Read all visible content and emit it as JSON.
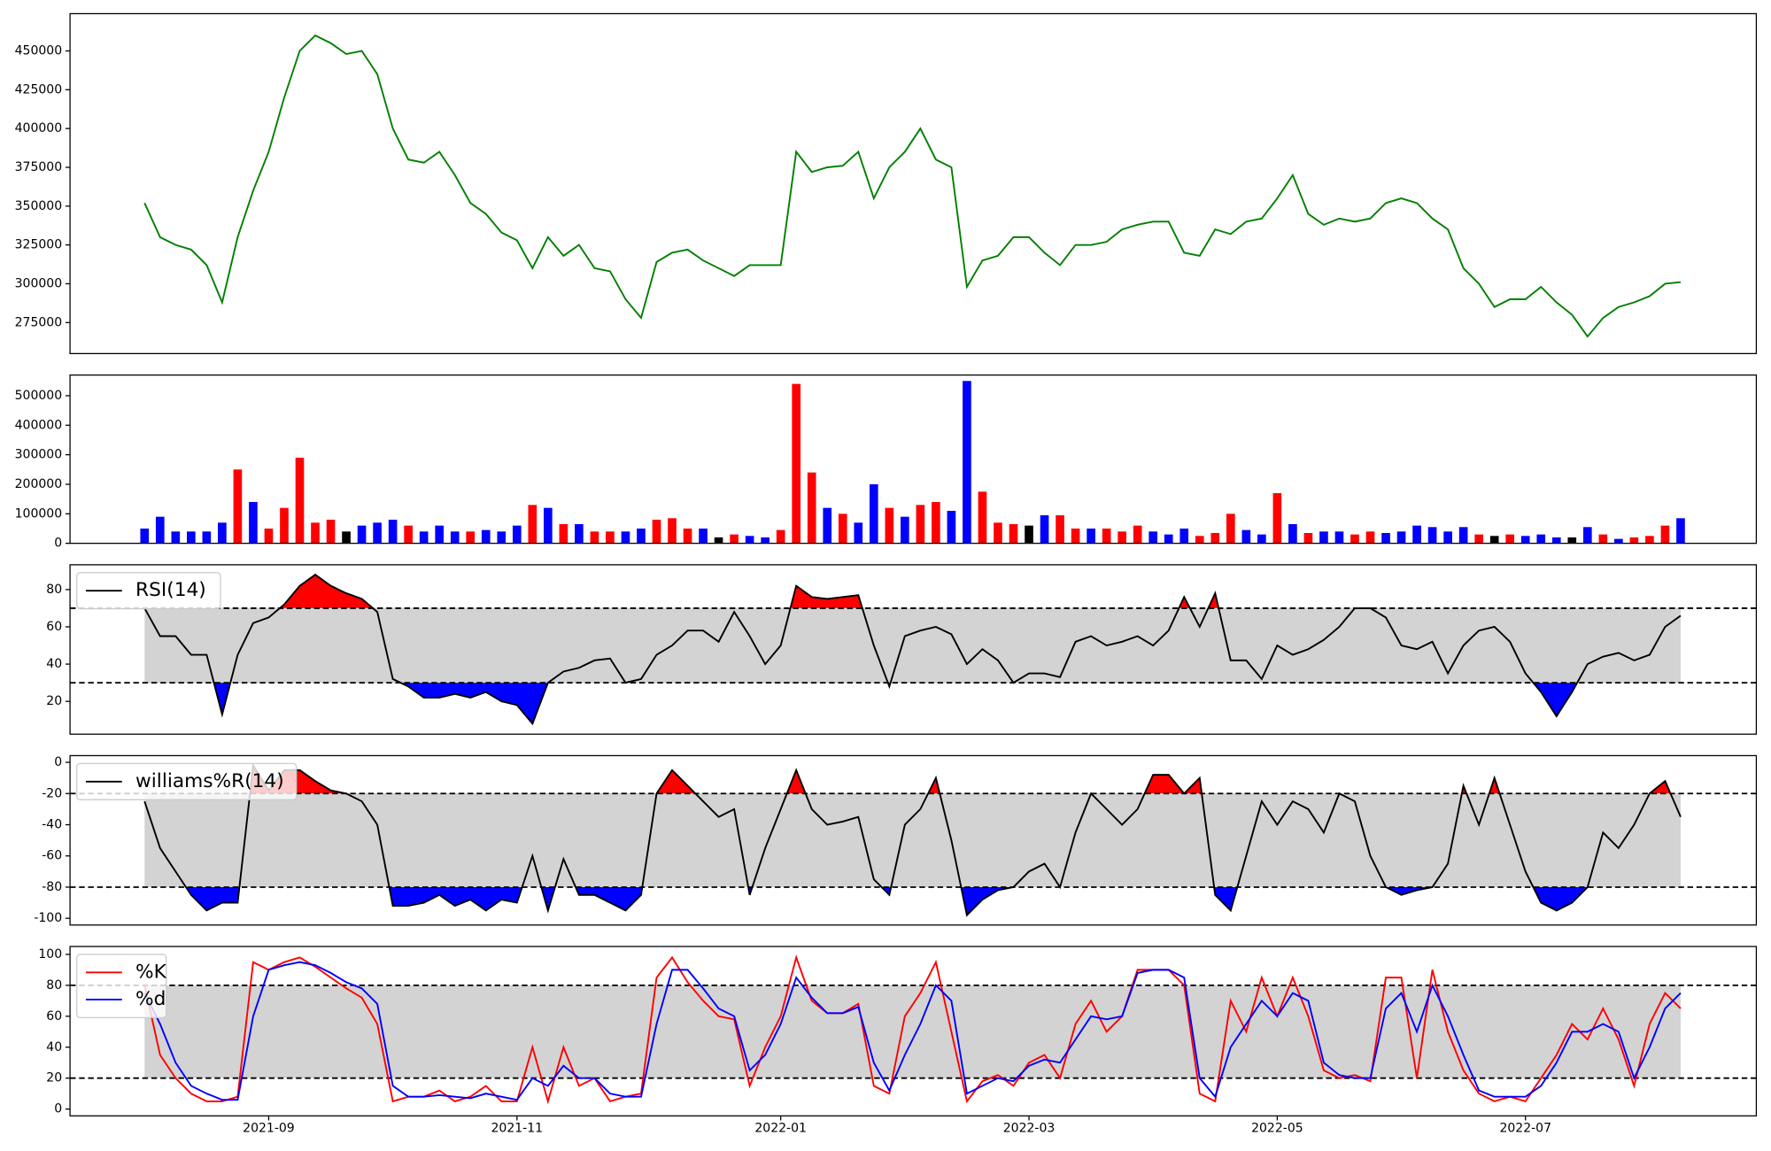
{
  "chart_data": [
    {
      "type": "line",
      "color": "green",
      "values": [
        352000,
        330000,
        325000,
        322000,
        312000,
        288000,
        330000,
        360000,
        385000,
        420000,
        450000,
        460000,
        455000,
        448000,
        450000,
        435000,
        400000,
        380000,
        378000,
        385000,
        370000,
        352000,
        345000,
        333000,
        328000,
        310000,
        330000,
        318000,
        325000,
        310000,
        308000,
        290000,
        278000,
        314000,
        320000,
        322000,
        315000,
        310000,
        305000,
        312000,
        312000,
        312000,
        385000,
        372000,
        375000,
        376000,
        385000,
        355000,
        375000,
        385000,
        400000,
        380000,
        375000,
        298000,
        315000,
        318000,
        330000,
        330000,
        320000,
        312000,
        325000,
        325000,
        327000,
        335000,
        338000,
        340000,
        340000,
        320000,
        318000,
        335000,
        332000,
        340000,
        342000,
        355000,
        370000,
        345000,
        338000,
        342000,
        340000,
        342000,
        352000,
        355000,
        352000,
        342000,
        335000,
        310000,
        300000,
        285000,
        290000,
        290000,
        298000,
        288000,
        280000,
        266000,
        278000,
        285000,
        288000,
        292000,
        300000,
        301000
      ],
      "ylim": [
        255000,
        474000
      ],
      "yticks": [
        275000,
        300000,
        325000,
        350000,
        375000,
        400000,
        425000,
        450000
      ]
    },
    {
      "type": "bar",
      "values": [
        50000,
        90000,
        40000,
        40000,
        40000,
        70000,
        250000,
        140000,
        50000,
        120000,
        290000,
        70000,
        80000,
        40000,
        60000,
        70000,
        80000,
        60000,
        40000,
        60000,
        40000,
        40000,
        45000,
        40000,
        60000,
        130000,
        120000,
        65000,
        65000,
        40000,
        40000,
        40000,
        50000,
        80000,
        85000,
        50000,
        50000,
        20000,
        30000,
        25000,
        20000,
        45000,
        540000,
        240000,
        120000,
        100000,
        70000,
        200000,
        120000,
        90000,
        130000,
        140000,
        110000,
        550000,
        175000,
        70000,
        65000,
        60000,
        95000,
        95000,
        50000,
        50000,
        50000,
        40000,
        60000,
        40000,
        30000,
        50000,
        25000,
        35000,
        100000,
        45000,
        30000,
        170000,
        65000,
        35000,
        40000,
        40000,
        30000,
        40000,
        35000,
        40000,
        60000,
        55000,
        40000,
        55000,
        30000,
        25000,
        30000,
        25000,
        30000,
        20000,
        20000,
        55000,
        30000,
        15000,
        20000,
        25000,
        60000,
        85000
      ],
      "colors": [
        "blue",
        "blue",
        "blue",
        "blue",
        "blue",
        "blue",
        "red",
        "blue",
        "red",
        "red",
        "red",
        "red",
        "red",
        "black",
        "blue",
        "blue",
        "blue",
        "red",
        "blue",
        "blue",
        "blue",
        "red",
        "blue",
        "blue",
        "blue",
        "red",
        "blue",
        "red",
        "blue",
        "red",
        "red",
        "blue",
        "blue",
        "red",
        "red",
        "red",
        "blue",
        "black",
        "red",
        "blue",
        "blue",
        "red",
        "red",
        "red",
        "blue",
        "red",
        "blue",
        "blue",
        "red",
        "blue",
        "red",
        "red",
        "blue",
        "blue",
        "red",
        "red",
        "red",
        "black",
        "blue",
        "red",
        "red",
        "blue",
        "red",
        "red",
        "red",
        "blue",
        "blue",
        "blue",
        "red",
        "red",
        "red",
        "blue",
        "blue",
        "red",
        "blue",
        "red",
        "blue",
        "blue",
        "red",
        "red",
        "blue",
        "blue",
        "blue",
        "blue",
        "blue",
        "blue",
        "red",
        "black",
        "red",
        "blue",
        "blue",
        "blue",
        "black",
        "blue",
        "red",
        "blue",
        "red",
        "red",
        "red",
        "blue"
      ],
      "ylim": [
        0,
        570000
      ],
      "yticks": [
        0,
        100000,
        200000,
        300000,
        400000,
        500000
      ]
    },
    {
      "type": "line",
      "legend": "upper left",
      "hlines": [
        30,
        70
      ],
      "band_color": "lightgray",
      "above_color": "red",
      "below_color": "blue",
      "series": [
        {
          "name": "RSI(14)",
          "color": "black",
          "values": [
            70,
            55,
            55,
            45,
            45,
            13,
            45,
            62,
            65,
            72,
            82,
            88,
            82,
            78,
            75,
            68,
            32,
            28,
            22,
            22,
            24,
            22,
            25,
            20,
            18,
            8,
            30,
            36,
            38,
            42,
            43,
            30,
            32,
            45,
            50,
            58,
            58,
            52,
            68,
            55,
            40,
            50,
            82,
            76,
            75,
            76,
            77,
            50,
            28,
            55,
            58,
            60,
            56,
            40,
            48,
            42,
            30,
            35,
            35,
            33,
            52,
            55,
            50,
            52,
            55,
            50,
            58,
            76,
            60,
            78,
            42,
            42,
            32,
            50,
            45,
            48,
            53,
            60,
            70,
            70,
            65,
            50,
            48,
            52,
            35,
            50,
            58,
            60,
            52,
            35,
            25,
            12,
            25,
            40,
            44,
            46,
            42,
            45,
            60,
            66
          ]
        }
      ],
      "ylim": [
        2.4,
        93.3
      ],
      "yticks": [
        20,
        40,
        60,
        80
      ]
    },
    {
      "type": "line",
      "legend": "upper left",
      "hlines": [
        -20,
        -80
      ],
      "band_color": "lightgray",
      "above_color": "red",
      "below_color": "blue",
      "series": [
        {
          "name": "williams%R(14)",
          "color": "black",
          "values": [
            -25,
            -55,
            -70,
            -85,
            -95,
            -90,
            -90,
            -2,
            -18,
            -5,
            -5,
            -12,
            -18,
            -20,
            -25,
            -40,
            -92,
            -92,
            -90,
            -85,
            -92,
            -88,
            -95,
            -88,
            -90,
            -60,
            -95,
            -62,
            -85,
            -85,
            -90,
            -95,
            -85,
            -20,
            -5,
            -15,
            -25,
            -35,
            -30,
            -85,
            -55,
            -30,
            -5,
            -30,
            -40,
            -38,
            -35,
            -75,
            -85,
            -40,
            -30,
            -10,
            -50,
            -98,
            -88,
            -82,
            -80,
            -70,
            -65,
            -80,
            -45,
            -20,
            -30,
            -40,
            -30,
            -8,
            -8,
            -20,
            -10,
            -85,
            -95,
            -60,
            -25,
            -40,
            -25,
            -30,
            -45,
            -20,
            -25,
            -60,
            -80,
            -85,
            -82,
            -80,
            -65,
            -15,
            -40,
            -10,
            -40,
            -70,
            -90,
            -95,
            -90,
            -80,
            -45,
            -55,
            -40,
            -20,
            -12,
            -35
          ]
        }
      ],
      "ylim": [
        -104.3,
        4.3
      ],
      "yticks": [
        -100,
        -80,
        -60,
        -40,
        -20,
        0
      ]
    },
    {
      "type": "line",
      "legend": "upper left",
      "hlines": [
        20,
        80
      ],
      "band_color": "lightgray",
      "series": [
        {
          "name": "%K",
          "color": "red",
          "values": [
            80,
            35,
            20,
            10,
            5,
            5,
            8,
            95,
            90,
            95,
            98,
            92,
            85,
            78,
            72,
            55,
            5,
            8,
            8,
            12,
            5,
            8,
            15,
            5,
            5,
            40,
            5,
            40,
            15,
            20,
            5,
            8,
            10,
            85,
            98,
            82,
            70,
            60,
            58,
            15,
            40,
            60,
            98,
            70,
            62,
            62,
            68,
            15,
            10,
            60,
            75,
            95,
            50,
            5,
            18,
            22,
            15,
            30,
            35,
            20,
            55,
            70,
            50,
            60,
            90,
            90,
            90,
            80,
            10,
            5,
            70,
            50,
            85,
            60,
            85,
            60,
            25,
            20,
            22,
            18,
            85,
            85,
            20,
            90,
            50,
            25,
            10,
            5,
            8,
            5,
            20,
            35,
            55,
            45,
            65,
            45,
            15,
            55,
            75,
            65
          ]
        },
        {
          "name": "%d",
          "color": "blue",
          "values": [
            75,
            55,
            30,
            15,
            10,
            6,
            6,
            60,
            90,
            93,
            95,
            93,
            88,
            82,
            78,
            68,
            15,
            8,
            8,
            9,
            8,
            7,
            10,
            8,
            6,
            20,
            15,
            28,
            20,
            20,
            10,
            8,
            8,
            55,
            90,
            90,
            78,
            65,
            60,
            25,
            35,
            55,
            85,
            72,
            62,
            62,
            66,
            30,
            12,
            35,
            55,
            80,
            70,
            10,
            15,
            20,
            18,
            28,
            32,
            30,
            45,
            60,
            58,
            60,
            88,
            90,
            90,
            85,
            20,
            8,
            40,
            55,
            70,
            60,
            75,
            70,
            30,
            22,
            20,
            20,
            65,
            75,
            50,
            80,
            60,
            35,
            12,
            8,
            8,
            8,
            15,
            30,
            50,
            50,
            55,
            50,
            20,
            40,
            65,
            75
          ]
        }
      ],
      "categories": [
        null,
        null,
        null,
        null,
        null,
        null,
        null,
        null,
        "2021-09",
        null,
        null,
        null,
        null,
        null,
        null,
        null,
        null,
        null,
        null,
        null,
        null,
        null,
        null,
        null,
        "2021-11",
        null,
        null,
        null,
        null,
        null,
        null,
        null,
        null,
        null,
        null,
        null,
        null,
        null,
        null,
        null,
        null,
        "2022-01",
        null,
        null,
        null,
        null,
        null,
        null,
        null,
        null,
        null,
        null,
        null,
        null,
        null,
        null,
        null,
        "2022-03",
        null,
        null,
        null,
        null,
        null,
        null,
        null,
        null,
        null,
        null,
        null,
        null,
        null,
        null,
        null,
        "2022-05",
        null,
        null,
        null,
        null,
        null,
        null,
        null,
        null,
        null,
        null,
        null,
        null,
        null,
        null,
        null,
        "2022-07",
        null,
        null,
        null,
        null,
        null,
        null,
        null,
        null,
        null,
        null
      ],
      "ylim": [
        -4.4,
        105.1
      ],
      "yticks": [
        0,
        20,
        40,
        60,
        80,
        100
      ]
    }
  ]
}
